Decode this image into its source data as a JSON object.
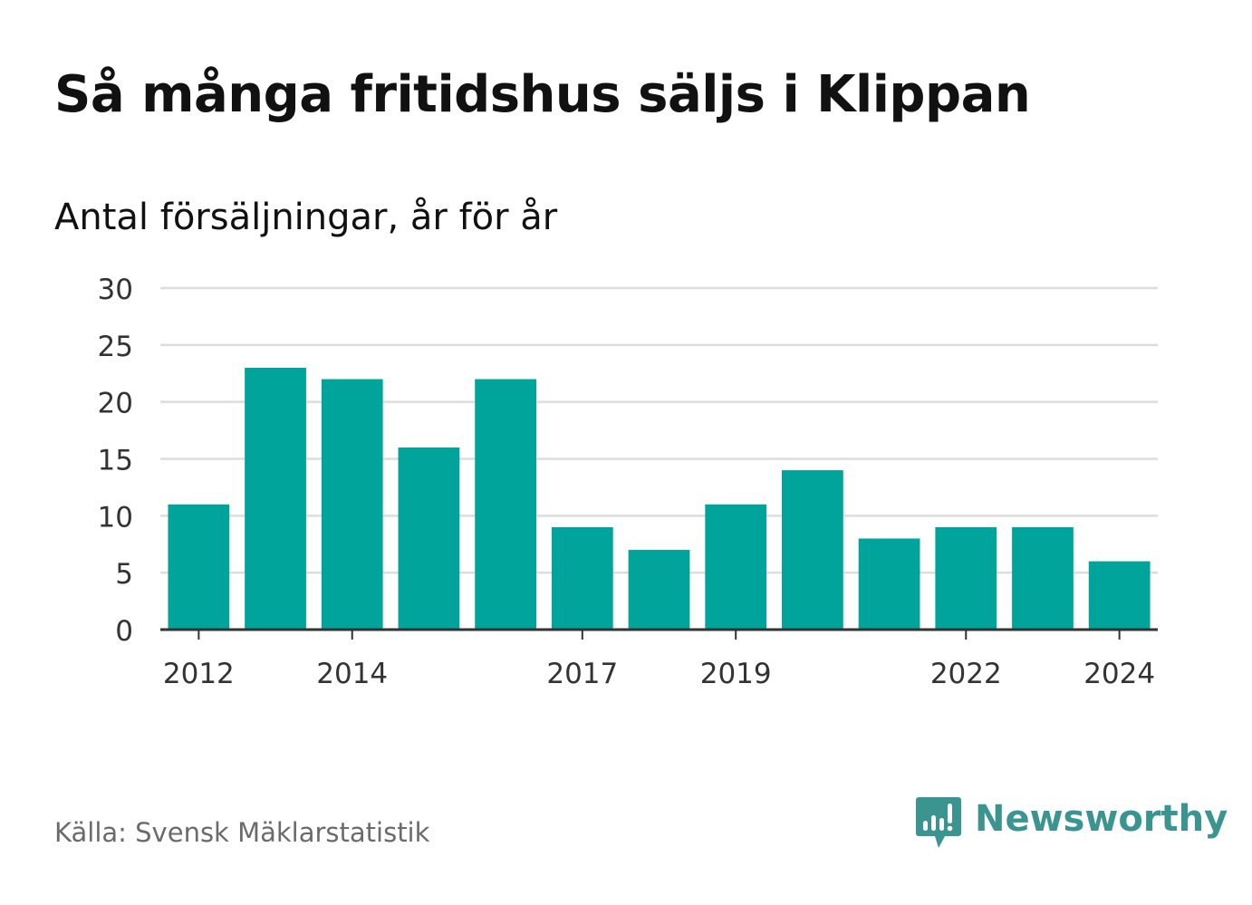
{
  "title": "Så många fritidshus säljs i Klippan",
  "subtitle": "Antal försäljningar, år för år",
  "source": "Källa: Svensk Mäklarstatistik",
  "brand": {
    "name": "Newsworthy",
    "icon": "newsworthy-chart-bubble-icon"
  },
  "colors": {
    "bar": "#00a49a",
    "grid": "#dddddd",
    "axis": "#333333",
    "tick_label": "#333333",
    "brand": "#3a9490",
    "source": "#6b6b6b"
  },
  "chart_data": {
    "type": "bar",
    "x": [
      2012,
      2013,
      2014,
      2015,
      2016,
      2017,
      2018,
      2019,
      2020,
      2021,
      2022,
      2023,
      2024
    ],
    "values": [
      11,
      23,
      22,
      16,
      22,
      9,
      7,
      11,
      14,
      8,
      9,
      9,
      6
    ],
    "x_tick_labels": [
      "2012",
      "2014",
      "2017",
      "2019",
      "2022",
      "2024"
    ],
    "y_ticks": [
      0,
      5,
      10,
      15,
      20,
      25,
      30
    ],
    "ylim": [
      0,
      30
    ],
    "xlabel": "",
    "ylabel": "",
    "grid": true,
    "legend": "none"
  }
}
